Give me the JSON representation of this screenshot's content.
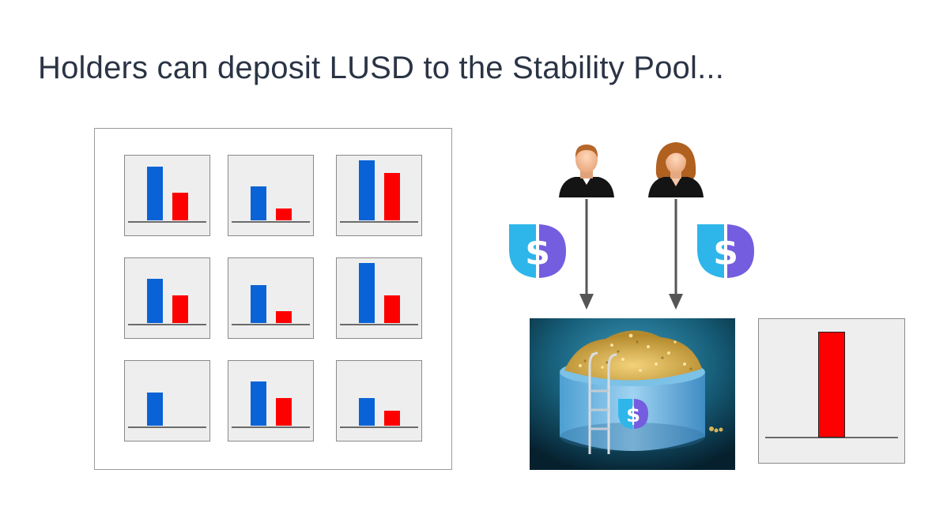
{
  "slide": {
    "title": "Holders can deposit LUSD to the Stability Pool..."
  },
  "colors": {
    "collateral_bar": "#0a63d6",
    "debt_bar": "#ff0000",
    "lusd_logo_left": "#2eb6ea",
    "lusd_logo_right": "#745ddf",
    "pool_water": "#1f6e8c"
  },
  "troves": [
    {
      "collateral": 68,
      "debt": 35
    },
    {
      "collateral": 43,
      "debt": 15
    },
    {
      "collateral": 76,
      "debt": 60
    },
    {
      "collateral": 56,
      "debt": 35
    },
    {
      "collateral": 48,
      "debt": 15
    },
    {
      "collateral": 76,
      "debt": 35
    },
    {
      "collateral": 42,
      "debt": 0
    },
    {
      "collateral": 56,
      "debt": 35
    },
    {
      "collateral": 35,
      "debt": 19
    }
  ],
  "icons": {
    "male_depositor": "male-user-icon",
    "female_depositor": "female-user-icon",
    "token": "lusd-token-icon",
    "pool": "stability-pool-illustration"
  },
  "stability_pool": {
    "deposit_level": 1.0
  }
}
